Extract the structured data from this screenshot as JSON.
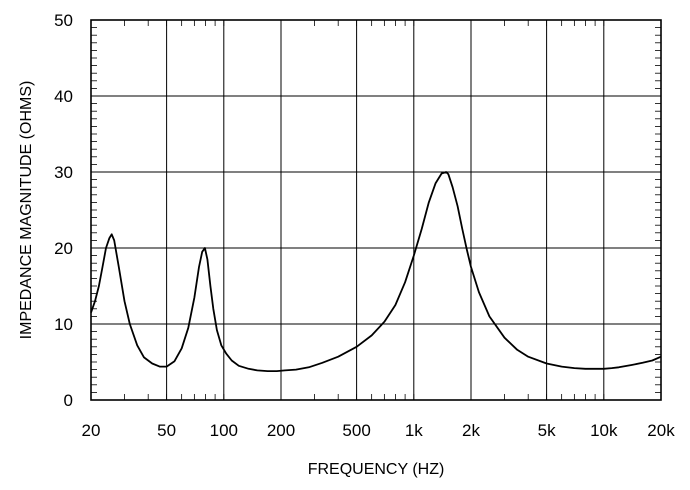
{
  "chart_data": {
    "type": "line",
    "title": "",
    "xlabel": "FREQUENCY  (HZ)",
    "ylabel": "IMPEDANCE MAGNITUDE  (OHMS)",
    "xscale": "log",
    "xlim": [
      20,
      20000
    ],
    "ylim": [
      0,
      50
    ],
    "grid": true,
    "legend": "none",
    "x_ticks": [
      {
        "value": 20,
        "label": "20"
      },
      {
        "value": 50,
        "label": "50"
      },
      {
        "value": 100,
        "label": "100"
      },
      {
        "value": 200,
        "label": "200"
      },
      {
        "value": 500,
        "label": "500"
      },
      {
        "value": 1000,
        "label": "1k"
      },
      {
        "value": 2000,
        "label": "2k"
      },
      {
        "value": 5000,
        "label": "5k"
      },
      {
        "value": 10000,
        "label": "10k"
      },
      {
        "value": 20000,
        "label": "20k"
      }
    ],
    "y_ticks": [
      {
        "value": 0,
        "label": "0"
      },
      {
        "value": 10,
        "label": "10"
      },
      {
        "value": 20,
        "label": "20"
      },
      {
        "value": 30,
        "label": "30"
      },
      {
        "value": 40,
        "label": "40"
      },
      {
        "value": 50,
        "label": "50"
      }
    ],
    "series": [
      {
        "color": "#000000",
        "x": [
          20,
          21,
          22,
          23,
          24,
          25,
          25.7,
          26.5,
          28,
          30,
          32,
          35,
          38,
          42,
          46,
          50,
          55,
          60,
          65,
          70,
          74,
          77,
          79.5,
          82,
          85,
          88,
          92,
          97,
          103,
          110,
          120,
          135,
          150,
          170,
          190,
          210,
          240,
          280,
          330,
          400,
          500,
          600,
          700,
          800,
          900,
          1000,
          1100,
          1200,
          1300,
          1400,
          1480,
          1520,
          1600,
          1700,
          1800,
          1900,
          2000,
          2200,
          2500,
          3000,
          3500,
          4000,
          5000,
          6000,
          7000,
          8000,
          9000,
          10000,
          11000,
          12000,
          14000,
          16000,
          18000,
          20000
        ],
        "values": [
          11.5,
          13,
          15,
          17.5,
          20,
          21.3,
          21.8,
          21,
          17.5,
          13,
          10,
          7.2,
          5.6,
          4.8,
          4.4,
          4.4,
          5.1,
          6.8,
          9.5,
          13.5,
          17.5,
          19.5,
          20,
          18.5,
          15,
          12,
          9.2,
          7.2,
          6.1,
          5.2,
          4.5,
          4.1,
          3.9,
          3.8,
          3.8,
          3.9,
          4.0,
          4.3,
          4.9,
          5.7,
          7.0,
          8.5,
          10.3,
          12.5,
          15.5,
          19,
          22.5,
          26,
          28.5,
          29.8,
          30,
          29.7,
          28,
          25.5,
          22.5,
          19.8,
          17.5,
          14.2,
          11,
          8.2,
          6.6,
          5.7,
          4.8,
          4.4,
          4.2,
          4.1,
          4.1,
          4.1,
          4.2,
          4.3,
          4.6,
          4.9,
          5.2,
          5.7
        ]
      }
    ]
  }
}
